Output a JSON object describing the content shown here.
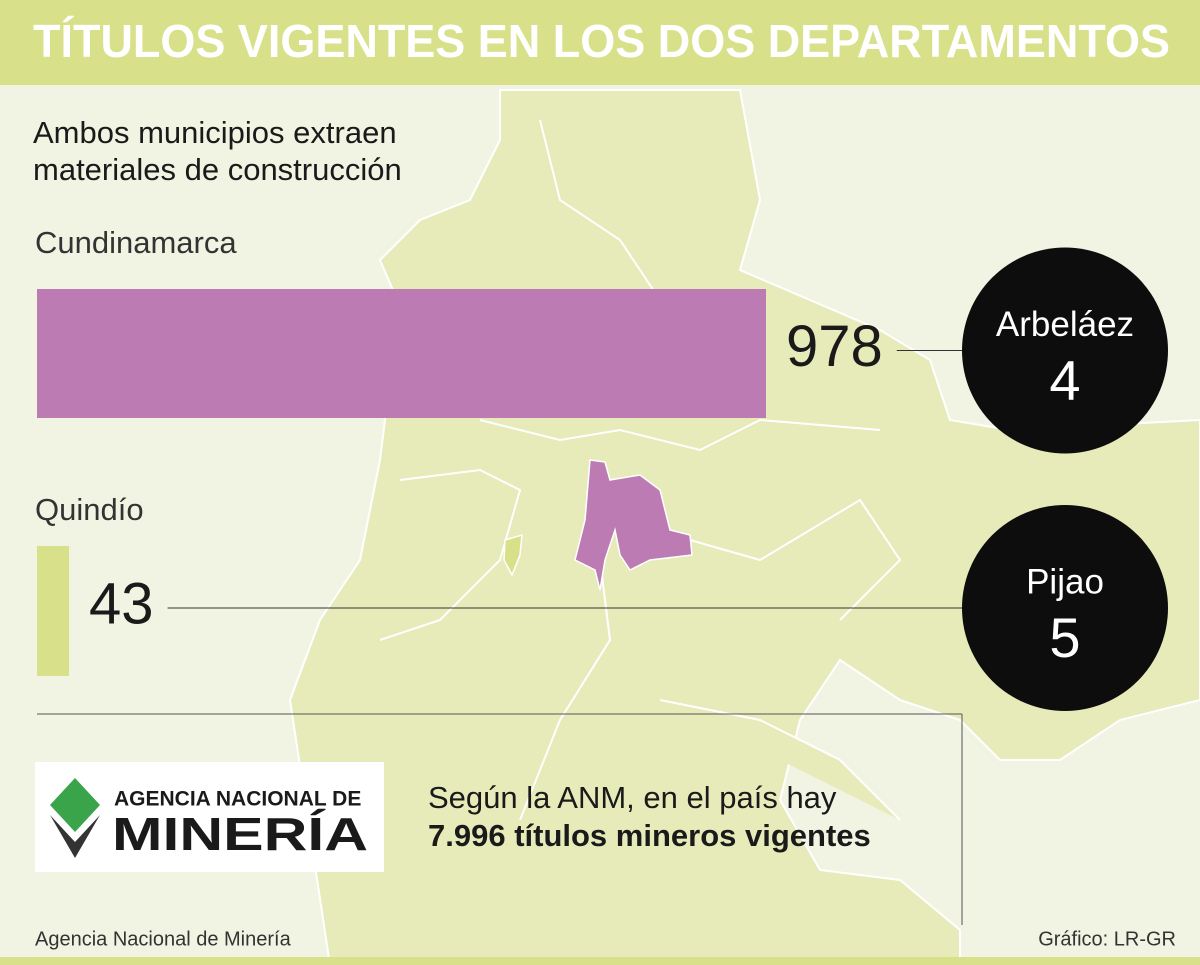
{
  "title": "TÍTULOS VIGENTES EN LOS DOS DEPARTAMENTOS",
  "chart_data": {
    "type": "bar",
    "orientation": "horizontal",
    "subtitle": [
      "Ambos municipios extraen",
      "materiales de construcción"
    ],
    "categories": [
      "Cundinamarca",
      "Quindío"
    ],
    "values": [
      978,
      43
    ],
    "colors": [
      "#bd7bb4",
      "#d9e08a"
    ],
    "callouts": [
      {
        "label": "Arbeláez",
        "value": 4
      },
      {
        "label": "Pijao",
        "value": 5
      }
    ]
  },
  "logo": {
    "line1": "AGENCIA NACIONAL DE",
    "line2": "MINERÍA"
  },
  "note": [
    "Según la ANM, en el país hay",
    "7.996 títulos mineros vigentes"
  ],
  "source": "Agencia Nacional de Minería",
  "credit": "Gráfico: LR-GR"
}
